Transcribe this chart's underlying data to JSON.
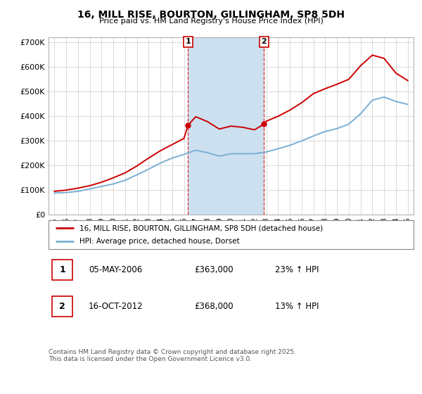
{
  "title": "16, MILL RISE, BOURTON, GILLINGHAM, SP8 5DH",
  "subtitle": "Price paid vs. HM Land Registry's House Price Index (HPI)",
  "ylabel_ticks": [
    "£0",
    "£100K",
    "£200K",
    "£300K",
    "£400K",
    "£500K",
    "£600K",
    "£700K"
  ],
  "ytick_values": [
    0,
    100000,
    200000,
    300000,
    400000,
    500000,
    600000,
    700000
  ],
  "ylim": [
    0,
    720000
  ],
  "legend_line1": "16, MILL RISE, BOURTON, GILLINGHAM, SP8 5DH (detached house)",
  "legend_line2": "HPI: Average price, detached house, Dorset",
  "marker1_date": "05-MAY-2006",
  "marker1_price": "£363,000",
  "marker1_hpi": "23% ↑ HPI",
  "marker2_date": "16-OCT-2012",
  "marker2_price": "£368,000",
  "marker2_hpi": "13% ↑ HPI",
  "vline1_x": 2006.34,
  "vline2_x": 2012.79,
  "sale1_x": 2006.34,
  "sale1_y": 363000,
  "sale2_x": 2012.79,
  "sale2_y": 368000,
  "red_color": "#cc0000",
  "blue_color": "#7bafd4",
  "shade_color": "#cce0f0",
  "footnote": "Contains HM Land Registry data © Crown copyright and database right 2025.\nThis data is licensed under the Open Government Licence v3.0.",
  "xlim": [
    1994.5,
    2025.5
  ],
  "years_blue": [
    1995,
    1996,
    1997,
    1998,
    1999,
    2000,
    2001,
    2002,
    2003,
    2004,
    2005,
    2006,
    2007,
    2008,
    2009,
    2010,
    2011,
    2012,
    2013,
    2014,
    2015,
    2016,
    2017,
    2018,
    2019,
    2020,
    2021,
    2022,
    2023,
    2024,
    2025
  ],
  "values_blue": [
    88000,
    90000,
    95000,
    105000,
    115000,
    125000,
    140000,
    162000,
    185000,
    210000,
    230000,
    245000,
    262000,
    252000,
    238000,
    248000,
    248000,
    248000,
    255000,
    268000,
    282000,
    300000,
    320000,
    338000,
    350000,
    368000,
    410000,
    465000,
    478000,
    460000,
    448000
  ],
  "years_red": [
    1995,
    1996,
    1997,
    1998,
    1999,
    2000,
    2001,
    2002,
    2003,
    2004,
    2005,
    2006,
    2006.34,
    2007,
    2008,
    2009,
    2010,
    2011,
    2012,
    2012.79,
    2013,
    2014,
    2015,
    2016,
    2017,
    2018,
    2019,
    2020,
    2021,
    2022,
    2023,
    2024,
    2025
  ],
  "values_red": [
    95000,
    100000,
    108000,
    118000,
    132000,
    150000,
    170000,
    198000,
    230000,
    260000,
    285000,
    310000,
    363000,
    398000,
    378000,
    348000,
    360000,
    355000,
    345000,
    368000,
    380000,
    400000,
    425000,
    455000,
    492000,
    512000,
    530000,
    550000,
    605000,
    648000,
    635000,
    575000,
    545000
  ]
}
